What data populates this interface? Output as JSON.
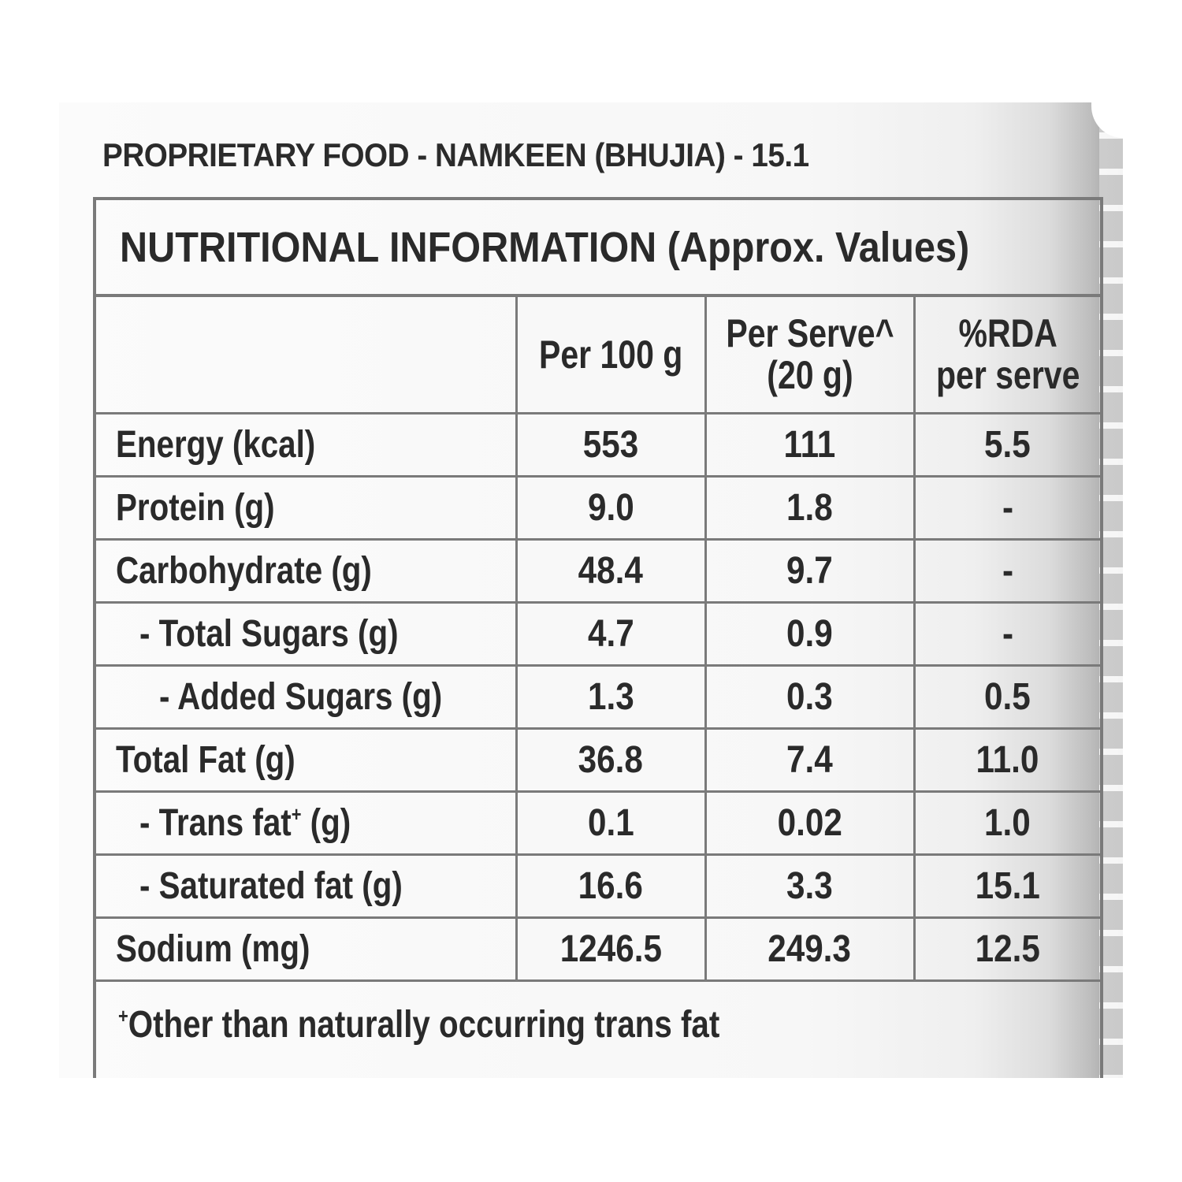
{
  "food_code": "PROPRIETARY FOOD - NAMKEEN (BHUJIA) - 15.1",
  "table": {
    "title": "NUTRITIONAL INFORMATION (Approx. Values)",
    "headers": {
      "per_100g": "Per 100 g",
      "per_serve_line1": "Per Serve^",
      "per_serve_line2": "(20 g)",
      "rda_line1": "%RDA",
      "rda_line2": "per serve"
    },
    "rows": [
      {
        "label": "Energy (kcal)",
        "per_100g": "553",
        "per_serve": "111",
        "rda": "5.5"
      },
      {
        "label": "Protein (g)",
        "per_100g": "9.0",
        "per_serve": "1.8",
        "rda": "-"
      },
      {
        "label": "Carbohydrate (g)",
        "per_100g": "48.4",
        "per_serve": "9.7",
        "rda": "-"
      },
      {
        "label": "- Total Sugars (g)",
        "per_100g": "4.7",
        "per_serve": "0.9",
        "rda": "-"
      },
      {
        "label": "- Added Sugars (g)",
        "per_100g": "1.3",
        "per_serve": "0.3",
        "rda": "0.5"
      },
      {
        "label": "Total Fat (g)",
        "per_100g": "36.8",
        "per_serve": "7.4",
        "rda": "11.0"
      },
      {
        "label_main": "- Trans fat",
        "label_marker": "+",
        "label_unit": " (g)",
        "per_100g": "0.1",
        "per_serve": "0.02",
        "rda": "1.0"
      },
      {
        "label": "- Saturated fat (g)",
        "per_100g": "16.6",
        "per_serve": "3.3",
        "rda": "15.1"
      },
      {
        "label": "Sodium (mg)",
        "per_100g": "1246.5",
        "per_serve": "249.3",
        "rda": "12.5"
      }
    ],
    "footnote_marker": "+",
    "footnote": "Other than naturally occurring trans fat"
  }
}
